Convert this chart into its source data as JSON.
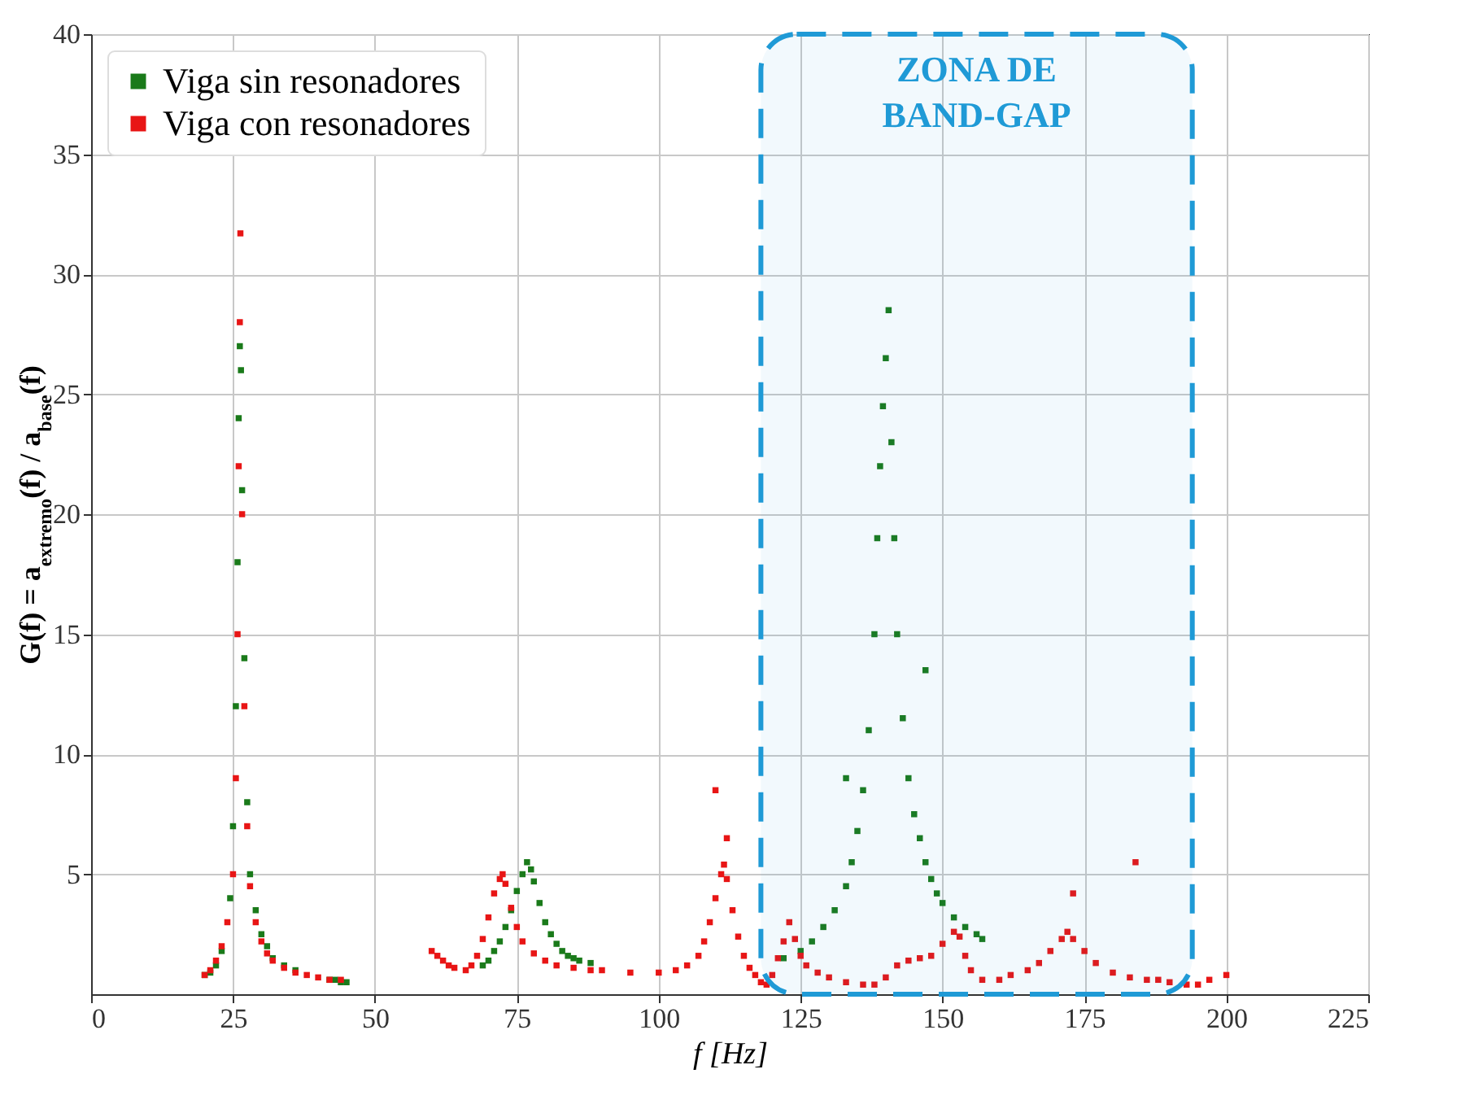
{
  "chart_data": {
    "type": "scatter",
    "xlabel": "f [Hz]",
    "ylabel": "G(f) = a$_{extremo}$(f) / a$_{base}$(f)",
    "xlim": [
      0,
      225
    ],
    "xticks": [
      0,
      25,
      50,
      75,
      100,
      125,
      150,
      175,
      200,
      225
    ],
    "ylim": [
      0,
      40
    ],
    "yticks": [
      5,
      10,
      15,
      20,
      25,
      30,
      35,
      40
    ],
    "grid": true,
    "legend": "top left",
    "marker": "square",
    "bands": [
      {
        "axis": "x",
        "from": 118,
        "to": 194,
        "label": "ZONA DE\nBAND-GAP",
        "color": "#1f9ad6"
      }
    ],
    "series": [
      {
        "name": "Viga sin resonadores",
        "color": "#1a7a1a",
        "x": [
          20,
          21,
          22,
          23,
          24.5,
          25,
          25.5,
          25.8,
          26,
          26.2,
          26.4,
          26.6,
          27,
          27.5,
          28,
          29,
          30,
          31,
          32,
          34,
          36,
          42,
          43,
          44,
          45,
          69,
          70,
          71,
          72,
          73,
          74,
          75,
          76,
          76.8,
          77.5,
          78,
          79,
          80,
          81,
          82,
          83,
          84,
          85,
          86,
          88,
          122,
          125,
          127,
          129,
          131,
          133,
          133,
          134,
          135,
          136,
          137,
          138,
          138.5,
          139,
          139.5,
          140,
          140.5,
          141,
          141.5,
          142,
          143,
          144,
          145,
          146,
          147,
          147,
          148,
          149,
          150,
          152,
          154,
          156,
          157
        ],
        "values": [
          0.8,
          0.9,
          1.2,
          1.8,
          4,
          7,
          12,
          18,
          24,
          27,
          26,
          21,
          14,
          8,
          5,
          3.5,
          2.5,
          2,
          1.5,
          1.2,
          1,
          0.6,
          0.6,
          0.5,
          0.5,
          1.2,
          1.4,
          1.8,
          2.2,
          2.8,
          3.5,
          4.3,
          5,
          5.5,
          5.2,
          4.7,
          3.8,
          3,
          2.5,
          2.1,
          1.8,
          1.6,
          1.5,
          1.4,
          1.3,
          1.5,
          1.8,
          2.2,
          2.8,
          3.5,
          4.5,
          9,
          5.5,
          6.8,
          8.5,
          11,
          15,
          19,
          22,
          24.5,
          26.5,
          28.5,
          23,
          19,
          15,
          11.5,
          9,
          7.5,
          6.5,
          5.5,
          13.5,
          4.8,
          4.2,
          3.8,
          3.2,
          2.8,
          2.5,
          2.3
        ]
      },
      {
        "name": "Viga con resonadores",
        "color": "#e81515",
        "x": [
          20,
          21,
          22,
          23,
          24,
          25,
          25.5,
          25.8,
          26,
          26.2,
          26.3,
          26.6,
          27,
          27.5,
          28,
          29,
          30,
          31,
          32,
          34,
          36,
          38,
          40,
          42,
          44,
          60,
          61,
          62,
          63,
          64,
          66,
          67,
          68,
          69,
          70,
          71,
          72,
          72.5,
          73,
          74,
          75,
          76,
          78,
          80,
          82,
          85,
          88,
          90,
          95,
          100,
          103,
          105,
          107,
          108,
          109,
          110,
          110,
          111,
          111.5,
          112,
          112,
          113,
          114,
          115,
          116,
          117,
          118,
          119,
          120,
          121,
          122,
          123,
          124,
          125,
          126,
          128,
          130,
          133,
          136,
          138,
          140,
          142,
          144,
          146,
          148,
          150,
          152,
          153,
          154,
          155,
          157,
          160,
          162,
          165,
          167,
          169,
          171,
          172,
          173,
          173,
          175,
          177,
          180,
          183,
          184,
          186,
          188,
          190,
          193,
          195,
          197,
          200
        ],
        "values": [
          0.8,
          1,
          1.4,
          2,
          3,
          5,
          9,
          15,
          22,
          28,
          31.7,
          20,
          12,
          7,
          4.5,
          3,
          2.2,
          1.7,
          1.4,
          1.1,
          0.9,
          0.8,
          0.7,
          0.6,
          0.6,
          1.8,
          1.6,
          1.4,
          1.2,
          1.1,
          1,
          1.2,
          1.6,
          2.3,
          3.2,
          4.2,
          4.8,
          5,
          4.6,
          3.6,
          2.8,
          2.2,
          1.7,
          1.4,
          1.2,
          1.1,
          1,
          1,
          0.9,
          0.9,
          1,
          1.2,
          1.6,
          2.2,
          3,
          4,
          8.5,
          5,
          5.4,
          4.8,
          6.5,
          3.5,
          2.4,
          1.6,
          1.1,
          0.8,
          0.5,
          0.4,
          0.8,
          1.5,
          2.2,
          3,
          2.3,
          1.6,
          1.2,
          0.9,
          0.7,
          0.5,
          0.4,
          0.4,
          0.7,
          1.2,
          1.4,
          1.5,
          1.6,
          2.1,
          2.6,
          2.4,
          1.6,
          1,
          0.6,
          0.6,
          0.8,
          1,
          1.3,
          1.8,
          2.3,
          2.6,
          2.3,
          4.2,
          1.8,
          1.3,
          0.9,
          0.7,
          5.5,
          0.6,
          0.6,
          0.5,
          0.4,
          0.4,
          0.6,
          0.8
        ]
      }
    ]
  }
}
